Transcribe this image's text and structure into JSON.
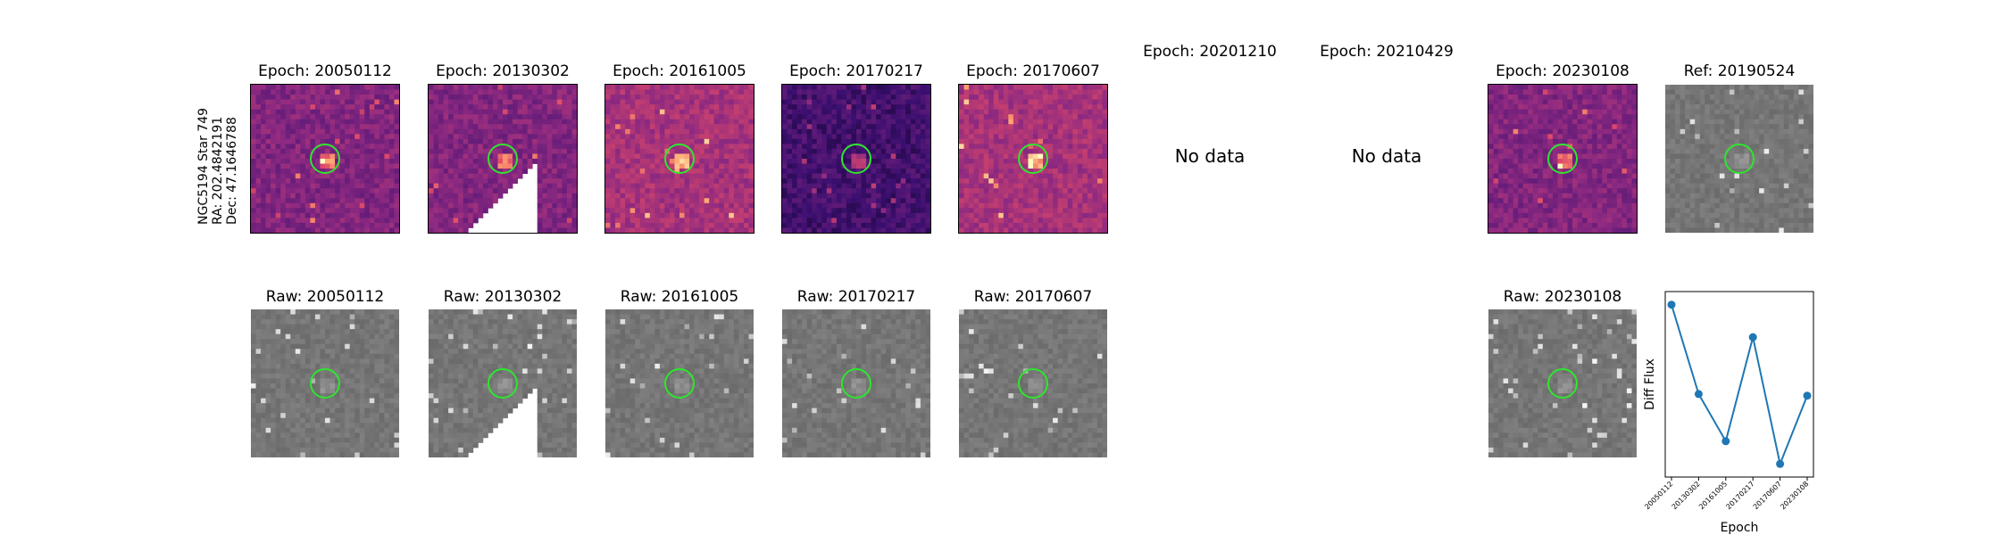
{
  "object_label": {
    "name": "NGC5194 Star 749",
    "ra": "RA: 202.4842191",
    "dec": "Dec: 47.1646788"
  },
  "top_row": [
    {
      "title": "Epoch: 20050112",
      "kind": "diff",
      "palette": "magma_mid"
    },
    {
      "title": "Epoch: 20130302",
      "kind": "diff",
      "palette": "magma_mid",
      "masked": true
    },
    {
      "title": "Epoch: 20161005",
      "kind": "diff",
      "palette": "magma_light"
    },
    {
      "title": "Epoch: 20170217",
      "kind": "diff",
      "palette": "magma_dark"
    },
    {
      "title": "Epoch: 20170607",
      "kind": "diff",
      "palette": "magma_light"
    },
    {
      "title": "Epoch: 20201210",
      "kind": "nodata",
      "message": "No data"
    },
    {
      "title": "Epoch: 20210429",
      "kind": "nodata",
      "message": "No data"
    },
    {
      "title": "Epoch: 20230108",
      "kind": "diff",
      "palette": "magma_mid"
    },
    {
      "title": "Ref: 20190524",
      "kind": "raw"
    }
  ],
  "bottom_row": [
    {
      "title": "Raw: 20050112",
      "kind": "raw"
    },
    {
      "title": "Raw: 20130302",
      "kind": "raw",
      "masked": true
    },
    {
      "title": "Raw: 20161005",
      "kind": "raw"
    },
    {
      "title": "Raw: 20170217",
      "kind": "raw"
    },
    {
      "title": "Raw: 20170607",
      "kind": "raw"
    },
    {
      "title": "",
      "kind": "empty"
    },
    {
      "title": "",
      "kind": "empty"
    },
    {
      "title": "Raw: 20230108",
      "kind": "raw"
    }
  ],
  "colors": {
    "aperture": "#2ee62e",
    "series": "#1f77b4",
    "magma_dark": "#3b0f70",
    "magma_mid": "#8c2981",
    "magma_light": "#de4968",
    "raw_gray": "#808080"
  },
  "chart_data": {
    "type": "line",
    "title": "",
    "xlabel": "Epoch",
    "ylabel": "Diff Flux",
    "categories": [
      "20050112",
      "20130302",
      "20161005",
      "20170217",
      "20170607",
      "20230108"
    ],
    "series": [
      {
        "values": [
          1.0,
          0.45,
          0.16,
          0.8,
          0.02,
          0.44
        ]
      }
    ],
    "grid": false,
    "y_ticks_shown": false
  }
}
